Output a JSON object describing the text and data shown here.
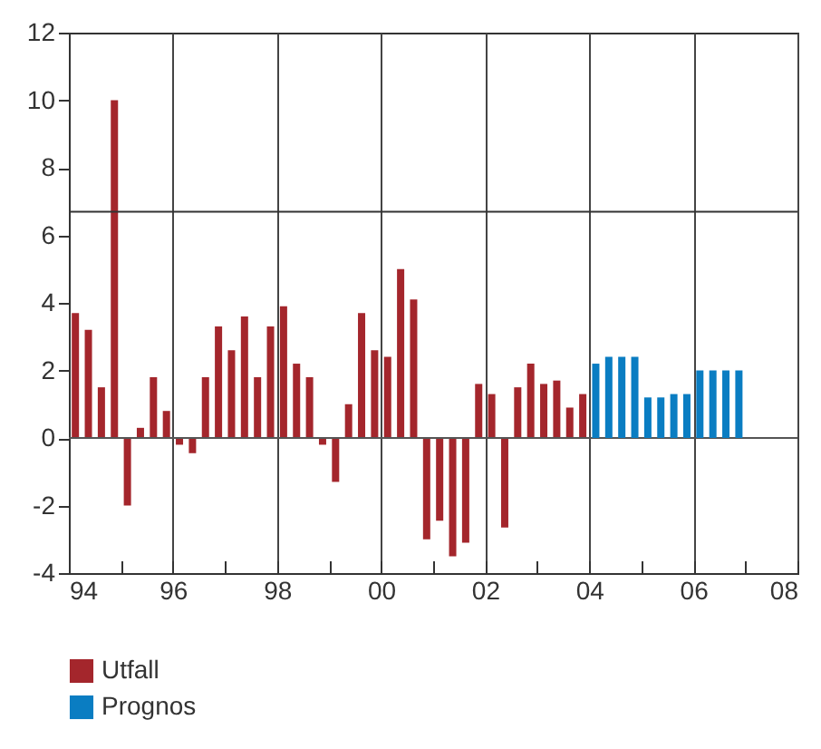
{
  "chart_data": {
    "type": "bar",
    "series": [
      {
        "name": "Utfall",
        "color": "#a4262c",
        "x": [
          1994.125,
          1994.375,
          1994.625,
          1994.875,
          1995.125,
          1995.375,
          1995.625,
          1995.875,
          1996.125,
          1996.375,
          1996.625,
          1996.875,
          1997.125,
          1997.375,
          1997.625,
          1997.875,
          1998.125,
          1998.375,
          1998.625,
          1998.875,
          1999.125,
          1999.375,
          1999.625,
          1999.875,
          2000.125,
          2000.375,
          2000.625,
          2000.875,
          2001.125,
          2001.375,
          2001.625,
          2001.875,
          2002.125,
          2002.375,
          2002.625,
          2002.875,
          2003.125,
          2003.375,
          2003.625,
          2003.875
        ],
        "values": [
          3.7,
          3.2,
          1.5,
          10,
          -2.0,
          0.3,
          1.8,
          0.8,
          -0.2,
          -0.45,
          1.8,
          3.3,
          2.6,
          3.6,
          1.8,
          3.3,
          3.9,
          2.2,
          1.8,
          -0.2,
          -1.3,
          1.0,
          3.7,
          2.6,
          2.4,
          5.0,
          4.1,
          -3.0,
          -2.45,
          -3.5,
          -3.1,
          1.6,
          1.3,
          -2.65,
          1.5,
          2.2,
          1.6,
          1.7,
          0.9,
          1.3
        ]
      },
      {
        "name": "Prognos",
        "color": "#0a7dc2",
        "x": [
          2004.125,
          2004.375,
          2004.625,
          2004.875,
          2005.125,
          2005.375,
          2005.625,
          2005.875,
          2006.125,
          2006.375,
          2006.625,
          2006.875
        ],
        "values": [
          2.2,
          2.4,
          2.4,
          2.4,
          1.2,
          1.2,
          1.3,
          1.3,
          2.0,
          2.0,
          2.0,
          2.0
        ]
      }
    ],
    "xlim": [
      1994,
      2008
    ],
    "xticks": [
      {
        "value": 1994,
        "label": "94"
      },
      {
        "value": 1995,
        "label": null
      },
      {
        "value": 1996,
        "label": "96"
      },
      {
        "value": 1997,
        "label": null
      },
      {
        "value": 1998,
        "label": "98"
      },
      {
        "value": 1999,
        "label": null
      },
      {
        "value": 2000,
        "label": "00"
      },
      {
        "value": 2001,
        "label": null
      },
      {
        "value": 2002,
        "label": "02"
      },
      {
        "value": 2003,
        "label": null
      },
      {
        "value": 2004,
        "label": "04"
      },
      {
        "value": 2005,
        "label": null
      },
      {
        "value": 2006,
        "label": "06"
      },
      {
        "value": 2007,
        "label": null
      },
      {
        "value": 2008,
        "label": "08"
      }
    ],
    "ylim": [
      -4,
      12
    ],
    "yticks": [
      -4,
      -2,
      0,
      2,
      4,
      6,
      8,
      10,
      12
    ],
    "ref_lines": [
      {
        "axis": "y",
        "value": 0,
        "color": "#555555"
      },
      {
        "axis": "y",
        "value": 6.7,
        "color": "#333333"
      }
    ],
    "grid": "x",
    "legend": "bottom"
  }
}
